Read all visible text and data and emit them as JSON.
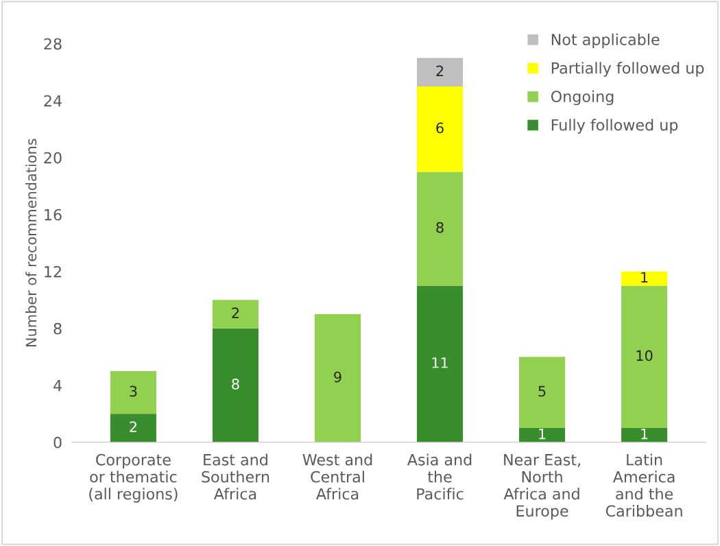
{
  "chart_data": {
    "type": "bar",
    "stacked": true,
    "ylabel": "Number of recommendations",
    "categories": [
      "Corporate\nor thematic\n(all regions)",
      "East and\nSouthern\nAfrica",
      "West and\nCentral\nAfrica",
      "Asia and\nthe\nPacific",
      "Near East,\nNorth\nAfrica and\nEurope",
      "Latin\nAmerica\nand the\nCaribbean"
    ],
    "series": [
      {
        "name": "Fully followed up",
        "color": "#388e2c",
        "values": [
          2,
          8,
          null,
          11,
          1,
          1
        ]
      },
      {
        "name": "Ongoing",
        "color": "#92d050",
        "values": [
          3,
          2,
          9,
          8,
          5,
          10
        ]
      },
      {
        "name": "Partially followed up",
        "color": "#ffff00",
        "values": [
          null,
          null,
          null,
          6,
          null,
          1
        ]
      },
      {
        "name": "Not applicable",
        "color": "#bfbfbf",
        "values": [
          null,
          null,
          null,
          2,
          null,
          null
        ]
      }
    ],
    "ylim": [
      0,
      28
    ],
    "yticks": [
      0,
      4,
      8,
      12,
      16,
      20,
      24,
      28
    ],
    "data_labels": true,
    "legend": "top right",
    "grid": false
  }
}
